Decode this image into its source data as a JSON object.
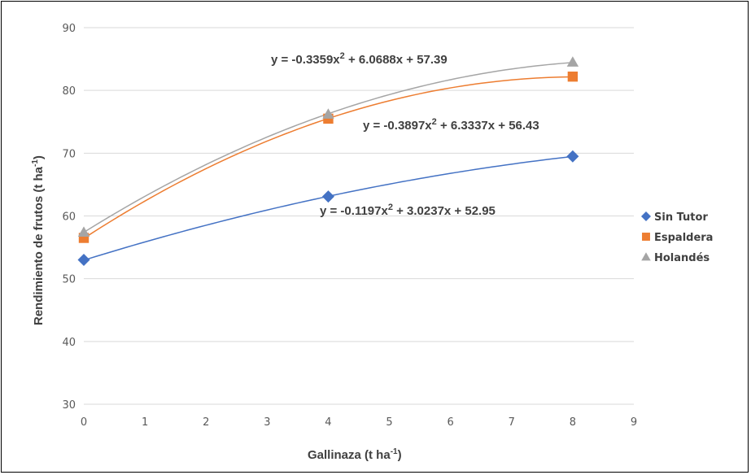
{
  "chart_data": {
    "type": "scatter",
    "xlabel": "Gallinaza (t ha",
    "xlabel_sup": "-1",
    "xlabel_end": ")",
    "ylabel": "Rendimiento de frutos (t ha",
    "ylabel_sup": "-1",
    "ylabel_end": ")",
    "xlim": [
      0,
      9
    ],
    "ylim": [
      30,
      90
    ],
    "x_ticks": [
      "0",
      "1",
      "2",
      "3",
      "4",
      "5",
      "6",
      "7",
      "8",
      "9"
    ],
    "y_ticks": [
      "30",
      "40",
      "50",
      "60",
      "70",
      "80",
      "90"
    ],
    "grid": "horizontal",
    "legend_position": "right",
    "series": [
      {
        "name": "Sin Tutor",
        "marker": "diamond",
        "color": "#4472C4",
        "x": [
          0,
          4,
          8
        ],
        "y": [
          53.0,
          63.1,
          69.5
        ],
        "trend": {
          "a": -0.1197,
          "b": 3.0237,
          "c": 52.95
        },
        "equation": {
          "pre": "y = -0.1197x",
          "sup": "2",
          "post": " + 3.0237x + 52.95"
        }
      },
      {
        "name": "Espaldera",
        "marker": "square",
        "color": "#ED7D31",
        "x": [
          0,
          4,
          8
        ],
        "y": [
          56.5,
          75.5,
          82.2
        ],
        "trend": {
          "a": -0.3897,
          "b": 6.3337,
          "c": 56.43
        },
        "equation": {
          "pre": "y = -0.3897x",
          "sup": "2",
          "post": " + 6.3337x + 56.43"
        }
      },
      {
        "name": "Holandés",
        "marker": "triangle",
        "color": "#A5A5A5",
        "x": [
          0,
          4,
          8
        ],
        "y": [
          57.4,
          76.2,
          84.5
        ],
        "trend": {
          "a": -0.3359,
          "b": 6.0688,
          "c": 57.39
        },
        "equation": {
          "pre": "y = -0.3359x",
          "sup": "2",
          "post": " + 6.0688x + 57.39"
        }
      }
    ]
  }
}
